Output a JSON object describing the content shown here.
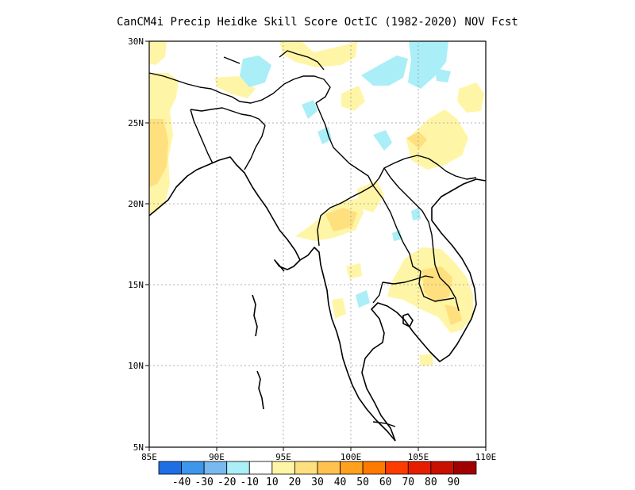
{
  "title": "CanCM4i Precip Heidke Skill Score OctIC (1982-2020) NOV Fcst",
  "map": {
    "lon_range": [
      85,
      110
    ],
    "lat_range": [
      5,
      30
    ],
    "lon_ticks": [
      "85E",
      "90E",
      "95E",
      "100E",
      "105E",
      "110E"
    ],
    "lat_ticks": [
      "5N",
      "10N",
      "15N",
      "20N",
      "25N",
      "30N"
    ],
    "gridlines": "dotted"
  },
  "legend": {
    "colors": [
      "#1e6fe6",
      "#3c96eb",
      "#78b9f0",
      "#aaeef7",
      "#ffffff",
      "#fff5a6",
      "#ffe07f",
      "#ffc24f",
      "#ffa11f",
      "#ff7a00",
      "#ff3c00",
      "#e61e00",
      "#c80f00",
      "#a00000"
    ],
    "labels": [
      "-40",
      "-30",
      "-20",
      "-10",
      "10",
      "20",
      "30",
      "40",
      "50",
      "60",
      "70",
      "80",
      "90"
    ]
  }
}
